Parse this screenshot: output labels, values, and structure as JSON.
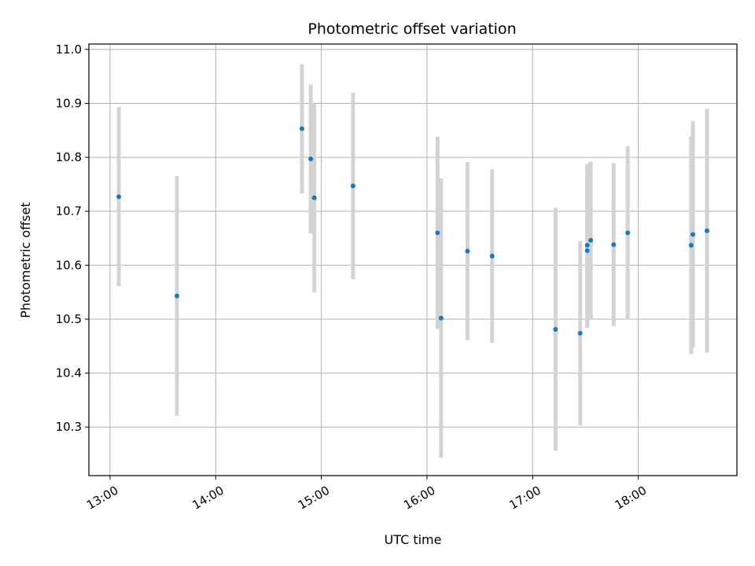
{
  "chart_data": {
    "type": "scatter",
    "title": "Photometric offset variation",
    "xlabel": "UTC time",
    "ylabel": "Photometric offset",
    "x_ticks": [
      "13:00",
      "14:00",
      "15:00",
      "16:00",
      "17:00",
      "18:00"
    ],
    "y_ticks": [
      "10.3",
      "10.4",
      "10.5",
      "10.6",
      "10.7",
      "10.8",
      "10.9",
      "11.0"
    ],
    "xlim": [
      "12:48",
      "18:56"
    ],
    "ylim": [
      10.21,
      11.01
    ],
    "grid": true,
    "point_color": "#1f77b4",
    "errorbar_color": "#d3d3d3",
    "points": [
      {
        "x": "13:05",
        "y": 10.727,
        "err": 0.166
      },
      {
        "x": "13:38",
        "y": 10.543,
        "err": 0.222
      },
      {
        "x": "14:49",
        "y": 10.853,
        "err": 0.12
      },
      {
        "x": "14:54",
        "y": 10.797,
        "err": 0.138
      },
      {
        "x": "14:56",
        "y": 10.725,
        "err": 0.175
      },
      {
        "x": "15:18",
        "y": 10.747,
        "err": 0.173
      },
      {
        "x": "16:06",
        "y": 10.66,
        "err": 0.178
      },
      {
        "x": "16:08",
        "y": 10.502,
        "err": 0.259
      },
      {
        "x": "16:23",
        "y": 10.626,
        "err": 0.165
      },
      {
        "x": "16:37",
        "y": 10.617,
        "err": 0.161
      },
      {
        "x": "17:13",
        "y": 10.481,
        "err": 0.225
      },
      {
        "x": "17:27",
        "y": 10.474,
        "err": 0.171
      },
      {
        "x": "17:31",
        "y": 10.627,
        "err": 0.143
      },
      {
        "x": "17:31",
        "y": 10.637,
        "err": 0.151
      },
      {
        "x": "17:33",
        "y": 10.646,
        "err": 0.146
      },
      {
        "x": "17:46",
        "y": 10.638,
        "err": 0.151
      },
      {
        "x": "17:54",
        "y": 10.66,
        "err": 0.161
      },
      {
        "x": "18:30",
        "y": 10.637,
        "err": 0.202
      },
      {
        "x": "18:31",
        "y": 10.657,
        "err": 0.21
      },
      {
        "x": "18:39",
        "y": 10.664,
        "err": 0.226
      }
    ]
  }
}
